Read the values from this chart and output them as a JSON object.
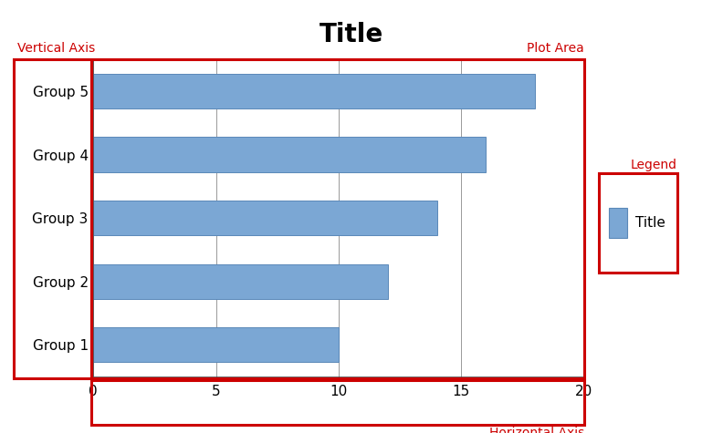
{
  "title": "Title",
  "title_fontsize": 20,
  "title_fontweight": "bold",
  "categories": [
    "Group 1",
    "Group 2",
    "Group 3",
    "Group 4",
    "Group 5"
  ],
  "values": [
    10,
    12,
    14,
    16,
    18
  ],
  "bar_color": "#7BA7D4",
  "bar_edgecolor": "#5A88B8",
  "xlim": [
    0,
    20
  ],
  "xticks": [
    0,
    5,
    10,
    15,
    20
  ],
  "grid_color": "#999999",
  "background_color": "#ffffff",
  "plot_area_bg": "#ffffff",
  "label_fontsize": 11,
  "tick_fontsize": 11,
  "red_color": "#cc0000",
  "red_linewidth": 2.2,
  "vertical_axis_label": "Vertical Axis",
  "plot_area_label": "Plot Area",
  "horizontal_axis_label": "Horizontal Axis",
  "legend_header": "Legend",
  "legend_label": "Title",
  "annotation_fontsize": 10
}
